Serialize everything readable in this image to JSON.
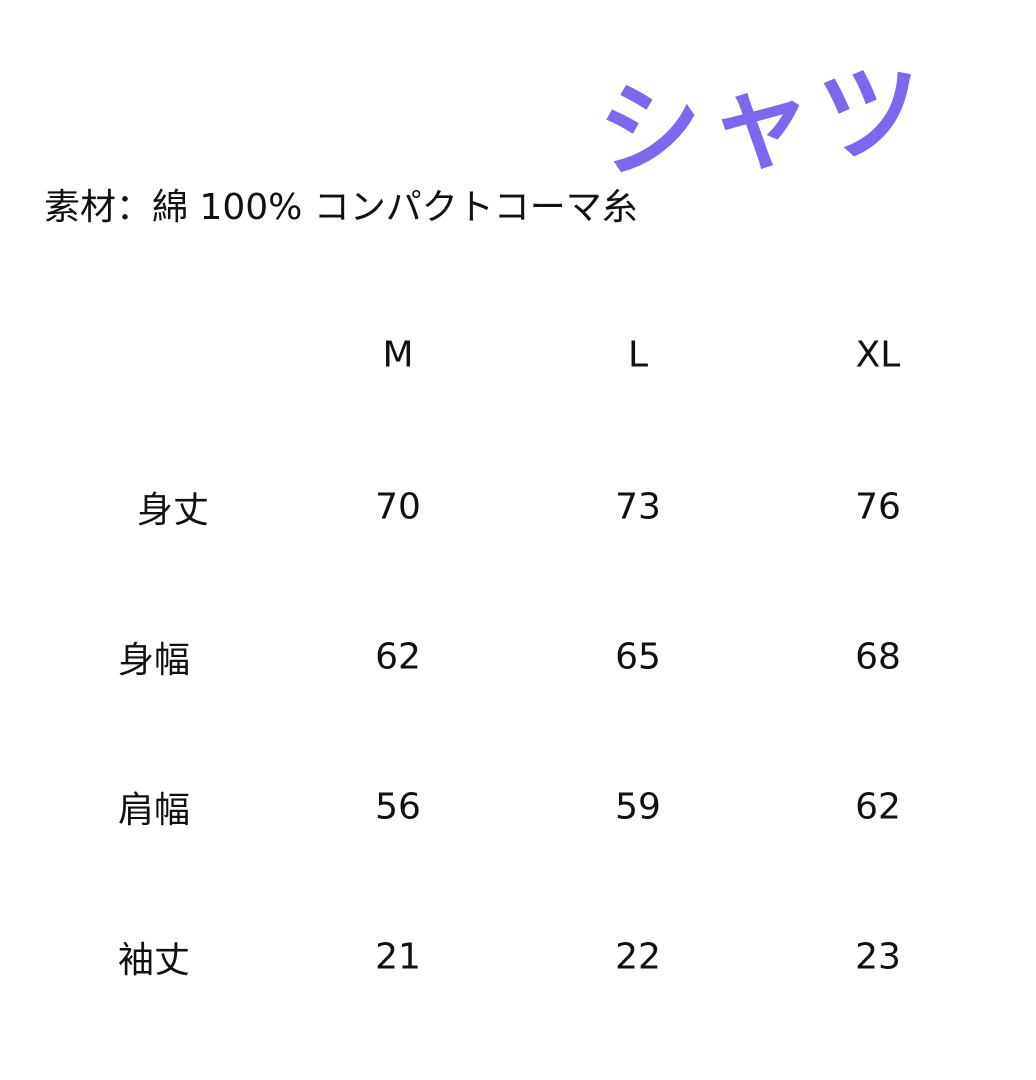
{
  "title": "シャツ",
  "title_color": "#7b68ee",
  "material": "素材：綿 100% コンパクトコーマ糸",
  "table": {
    "columns": [
      "M",
      "L",
      "XL"
    ],
    "rows": [
      {
        "label": "身丈",
        "values": [
          "70",
          "73",
          "76"
        ]
      },
      {
        "label": "身幅",
        "values": [
          "62",
          "65",
          "68"
        ]
      },
      {
        "label": "肩幅",
        "values": [
          "56",
          "59",
          "62"
        ]
      },
      {
        "label": "袖丈",
        "values": [
          "21",
          "22",
          "23"
        ]
      }
    ]
  }
}
